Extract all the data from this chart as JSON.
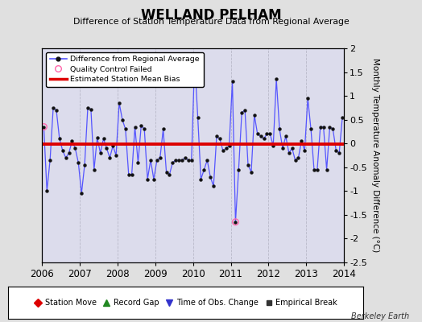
{
  "title": "WELLAND PELHAM",
  "subtitle": "Difference of Station Temperature Data from Regional Average",
  "ylabel": "Monthly Temperature Anomaly Difference (°C)",
  "xlabel_years": [
    2006,
    2007,
    2008,
    2009,
    2010,
    2011,
    2012,
    2013,
    2014
  ],
  "ylim": [
    -2.5,
    2.0
  ],
  "yticks": [
    -2.5,
    -2.0,
    -1.5,
    -1.0,
    -0.5,
    0.0,
    0.5,
    1.0,
    1.5,
    2.0
  ],
  "bias_value": -0.02,
  "fig_bg_color": "#e0e0e0",
  "plot_bg_color": "#dcdcec",
  "line_color": "#5555ff",
  "bias_color": "#dd0000",
  "credit": "Berkeley Earth",
  "times": [
    2006.042,
    2006.125,
    2006.208,
    2006.292,
    2006.375,
    2006.458,
    2006.542,
    2006.625,
    2006.708,
    2006.792,
    2006.875,
    2006.958,
    2007.042,
    2007.125,
    2007.208,
    2007.292,
    2007.375,
    2007.458,
    2007.542,
    2007.625,
    2007.708,
    2007.792,
    2007.875,
    2007.958,
    2008.042,
    2008.125,
    2008.208,
    2008.292,
    2008.375,
    2008.458,
    2008.542,
    2008.625,
    2008.708,
    2008.792,
    2008.875,
    2008.958,
    2009.042,
    2009.125,
    2009.208,
    2009.292,
    2009.375,
    2009.458,
    2009.542,
    2009.625,
    2009.708,
    2009.792,
    2009.875,
    2009.958,
    2010.042,
    2010.125,
    2010.208,
    2010.292,
    2010.375,
    2010.458,
    2010.542,
    2010.625,
    2010.708,
    2010.792,
    2010.875,
    2010.958,
    2011.042,
    2011.125,
    2011.208,
    2011.292,
    2011.375,
    2011.458,
    2011.542,
    2011.625,
    2011.708,
    2011.792,
    2011.875,
    2011.958,
    2012.042,
    2012.125,
    2012.208,
    2012.292,
    2012.375,
    2012.458,
    2012.542,
    2012.625,
    2012.708,
    2012.792,
    2012.875,
    2012.958,
    2013.042,
    2013.125,
    2013.208,
    2013.292,
    2013.375,
    2013.458,
    2013.542,
    2013.625,
    2013.708,
    2013.792,
    2013.875,
    2013.958
  ],
  "values": [
    0.35,
    -1.0,
    -0.35,
    0.75,
    0.7,
    0.1,
    -0.15,
    -0.3,
    -0.2,
    0.05,
    -0.1,
    -0.4,
    -1.05,
    -0.45,
    0.75,
    0.72,
    -0.55,
    0.12,
    -0.2,
    0.1,
    -0.1,
    -0.3,
    -0.05,
    -0.25,
    0.85,
    0.5,
    0.3,
    -0.65,
    -0.65,
    0.35,
    -0.4,
    0.38,
    0.3,
    -0.75,
    -0.35,
    -0.75,
    -0.35,
    -0.3,
    0.3,
    -0.6,
    -0.65,
    -0.4,
    -0.35,
    -0.35,
    -0.35,
    -0.3,
    -0.35,
    -0.35,
    1.75,
    0.55,
    -0.75,
    -0.55,
    -0.35,
    -0.7,
    -0.9,
    0.15,
    0.1,
    -0.15,
    -0.1,
    -0.05,
    1.3,
    -1.65,
    -0.55,
    0.65,
    0.7,
    -0.45,
    -0.6,
    0.6,
    0.2,
    0.15,
    0.1,
    0.2,
    0.2,
    -0.05,
    1.35,
    0.3,
    -0.1,
    0.15,
    -0.2,
    -0.1,
    -0.35,
    -0.3,
    0.05,
    -0.15,
    0.95,
    0.3,
    -0.55,
    -0.55,
    0.35,
    0.35,
    -0.55,
    0.35,
    0.3,
    -0.15,
    -0.2,
    0.55
  ],
  "qc_failed_times": [
    2006.042,
    2011.125
  ],
  "qc_failed_values": [
    0.35,
    -1.65
  ]
}
